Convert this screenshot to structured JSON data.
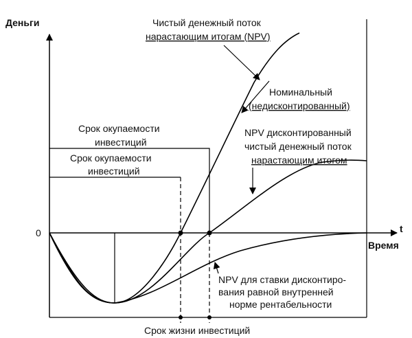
{
  "axes": {
    "y_label": "Деньги",
    "origin_label": "0",
    "t_label": "t",
    "x_label": "Время"
  },
  "labels": {
    "npv_nominal_line1": "Чистый денежный поток",
    "npv_nominal_line2": "нарастающим итогам (NPV)",
    "nominal_line1": "Номинальный",
    "nominal_line2": "(недисконтированный)",
    "discounted_line1": "NPV дисконтированный",
    "discounted_line2": "чистый денежный поток",
    "discounted_line3": "нарастающим итогом",
    "payback_outer_line1": "Срок окупаемости",
    "payback_outer_line2": "инвестиций",
    "payback_inner_line1": "Срок окупаемости",
    "payback_inner_line2": "инвестиций",
    "irr_line1": "NPV для ставки дисконтиро-",
    "irr_line2": "вания  равной внутренней",
    "irr_line3": "норме рентабельности",
    "lifetime": "Срок жизни инвестиций"
  }
}
